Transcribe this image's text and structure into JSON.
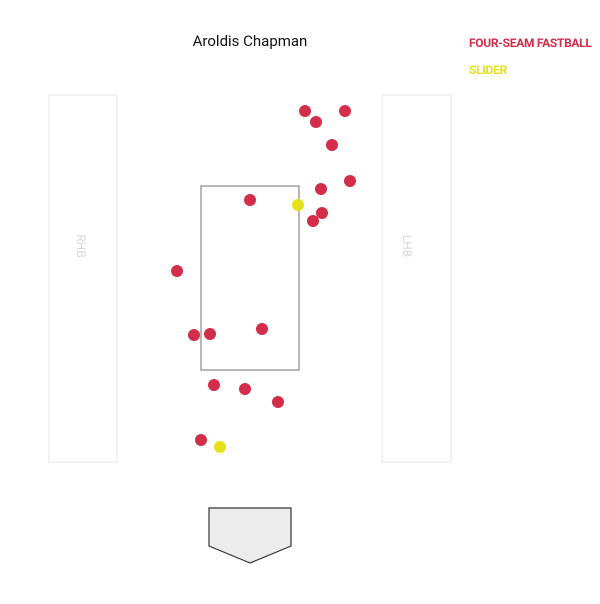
{
  "chart_data": {
    "type": "scatter",
    "title": "Aroldis Chapman",
    "xlim": [
      -5,
      7
    ],
    "ylim": [
      -3.1,
      8.9
    ],
    "series": [
      {
        "name": "FOUR-SEAM FASTBALL",
        "color": "#d22d49",
        "x": [
          1.1,
          1.9,
          1.32,
          1.64,
          2.0,
          1.42,
          0,
          1.44,
          1.26,
          -1.46,
          -1.12,
          -0.8,
          0.24,
          -0.72,
          -0.1,
          0.56,
          -0.98
        ],
        "values": [
          6.68,
          6.68,
          6.46,
          6.0,
          5.28,
          5.12,
          4.9,
          4.64,
          4.48,
          3.48,
          2.2,
          2.22,
          2.32,
          1.2,
          1.12,
          0.86,
          0.1
        ]
      },
      {
        "name": "SLIDER",
        "color": "#e6e01a",
        "x": [
          0.96,
          -0.6
        ],
        "values": [
          4.8,
          -0.04
        ]
      }
    ]
  },
  "batter_boxes": [
    "RHB",
    "LHB"
  ]
}
